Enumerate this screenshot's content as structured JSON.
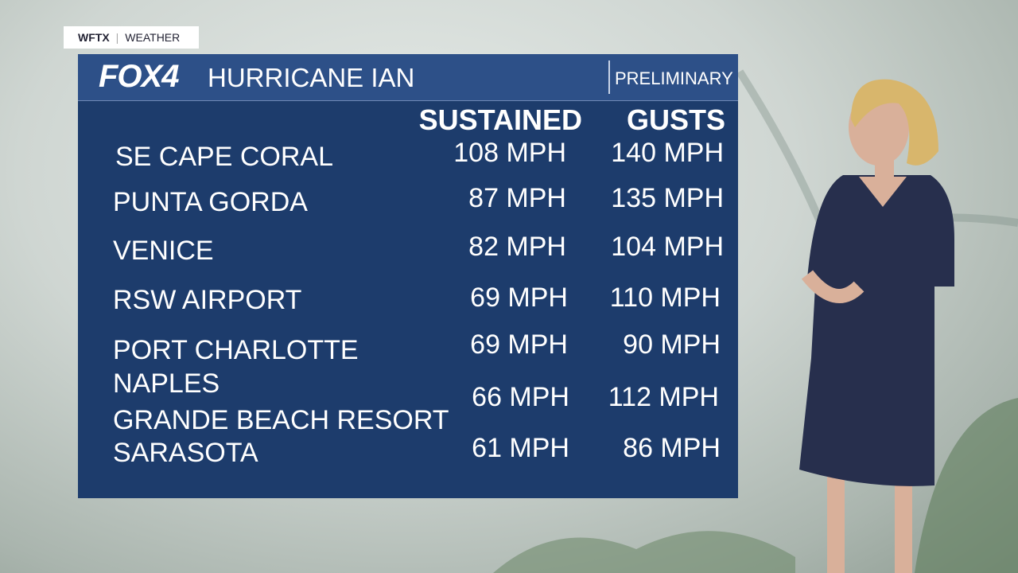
{
  "station": {
    "call_sign": "WFTX",
    "section": "WEATHER"
  },
  "panel": {
    "logo": "FOX4",
    "title": "HURRICANE IAN",
    "badge": "PRELIMINARY",
    "columns": [
      "SUSTAINED",
      "GUSTS"
    ],
    "rows": [
      {
        "location": [
          "SE CAPE CORAL"
        ],
        "sustained": "108 MPH",
        "gusts": "140 MPH"
      },
      {
        "location": [
          "PUNTA GORDA"
        ],
        "sustained": "87 MPH",
        "gusts": "135 MPH"
      },
      {
        "location": [
          "VENICE"
        ],
        "sustained": "82 MPH",
        "gusts": "104 MPH"
      },
      {
        "location": [
          "RSW AIRPORT"
        ],
        "sustained": "69 MPH",
        "gusts": "110 MPH"
      },
      {
        "location": [
          "PORT CHARLOTTE"
        ],
        "sustained": "69 MPH",
        "gusts": "90 MPH"
      },
      {
        "location": [
          "NAPLES",
          "GRANDE BEACH RESORT"
        ],
        "sustained": "66 MPH",
        "gusts": "112 MPH"
      },
      {
        "location": [
          "SARASOTA"
        ],
        "sustained": "61 MPH",
        "gusts": "86 MPH"
      }
    ]
  }
}
